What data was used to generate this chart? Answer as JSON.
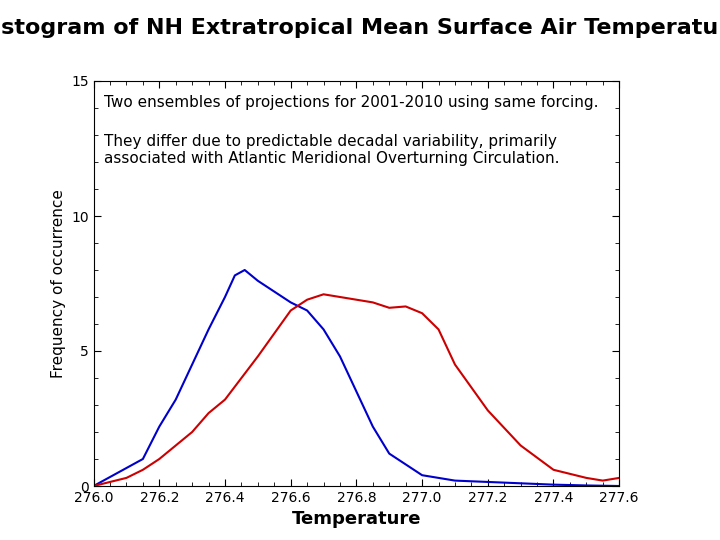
{
  "title": "Histogram of NH Extratropical Mean Surface Air Temperature",
  "title_bg": "#ffffcc",
  "xlabel": "Temperature",
  "ylabel": "Frequency of occurrence",
  "xlim": [
    276.0,
    277.6
  ],
  "ylim": [
    0,
    15
  ],
  "yticks": [
    0,
    5,
    10,
    15
  ],
  "xticks": [
    276.0,
    276.2,
    276.4,
    276.6,
    276.8,
    277.0,
    277.2,
    277.4,
    277.6
  ],
  "annotation1": "Two ensembles of projections for 2001-2010 using same forcing.",
  "annotation2": "They differ due to predictable decadal variability, primarily\nassociated with Atlantic Meridional Overturning Circulation.",
  "blue_x": [
    276.0,
    276.15,
    276.2,
    276.25,
    276.3,
    276.35,
    276.4,
    276.43,
    276.46,
    276.5,
    276.55,
    276.6,
    276.65,
    276.7,
    276.75,
    276.8,
    276.85,
    276.9,
    277.0,
    277.1,
    277.2,
    277.3,
    277.4,
    277.5,
    277.6
  ],
  "blue_y": [
    0,
    1.0,
    2.2,
    3.2,
    4.5,
    5.8,
    7.0,
    7.8,
    8.0,
    7.6,
    7.2,
    6.8,
    6.5,
    5.8,
    4.8,
    3.5,
    2.2,
    1.2,
    0.4,
    0.2,
    0.15,
    0.1,
    0.05,
    0.02,
    0.0
  ],
  "red_x": [
    276.0,
    276.1,
    276.15,
    276.2,
    276.25,
    276.3,
    276.35,
    276.4,
    276.5,
    276.6,
    276.65,
    276.7,
    276.75,
    276.8,
    276.85,
    276.9,
    276.95,
    277.0,
    277.05,
    277.1,
    277.2,
    277.3,
    277.4,
    277.5,
    277.55,
    277.6
  ],
  "red_y": [
    0,
    0.3,
    0.6,
    1.0,
    1.5,
    2.0,
    2.7,
    3.2,
    4.8,
    6.5,
    6.9,
    7.1,
    7.0,
    6.9,
    6.8,
    6.6,
    6.65,
    6.4,
    5.8,
    4.5,
    2.8,
    1.5,
    0.6,
    0.3,
    0.2,
    0.3
  ],
  "blue_color": "#0000cc",
  "red_color": "#cc0000",
  "bg_color": "#ffffff",
  "plot_bg": "#ffffff",
  "title_fontsize": 16,
  "annot_fontsize": 11,
  "xlabel_fontsize": 13,
  "ylabel_fontsize": 11
}
